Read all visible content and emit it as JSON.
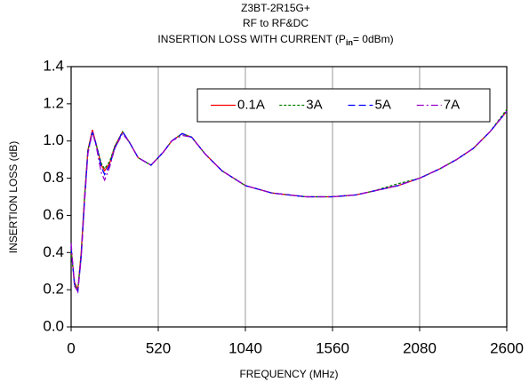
{
  "chart_data": {
    "type": "line",
    "title": [
      "Z3BT-2R15G+",
      "RF to RF&DC"
    ],
    "title_line3": [
      "INSERTION LOSS WITH CURRENT (P",
      "in",
      "= 0dBm)"
    ],
    "x_label": "FREQUENCY (MHz)",
    "y_label": "INSERTION LOSS (dB)",
    "x": [
      0,
      20,
      40,
      60,
      80,
      100,
      127,
      150,
      180,
      200,
      230,
      260,
      307,
      350,
      400,
      477,
      550,
      600,
      663,
      720,
      800,
      900,
      1040,
      1200,
      1400,
      1560,
      1700,
      1800,
      1950,
      2080,
      2200,
      2300,
      2400,
      2500,
      2600
    ],
    "series": [
      {
        "name": "0.1A",
        "color": "#ff0000",
        "dash": "",
        "values": [
          0.42,
          0.24,
          0.2,
          0.4,
          0.7,
          0.95,
          1.06,
          0.98,
          0.87,
          0.84,
          0.88,
          0.97,
          1.05,
          0.99,
          0.91,
          0.87,
          0.94,
          1.0,
          1.04,
          1.02,
          0.93,
          0.84,
          0.76,
          0.72,
          0.7,
          0.7,
          0.71,
          0.73,
          0.76,
          0.8,
          0.85,
          0.9,
          0.96,
          1.05,
          1.16
        ]
      },
      {
        "name": "3A",
        "color": "#008000",
        "dash": "3,2",
        "values": [
          0.41,
          0.23,
          0.2,
          0.39,
          0.69,
          0.95,
          1.05,
          0.98,
          0.88,
          0.85,
          0.89,
          0.97,
          1.05,
          0.99,
          0.91,
          0.87,
          0.94,
          1.0,
          1.04,
          1.02,
          0.93,
          0.84,
          0.76,
          0.72,
          0.7,
          0.7,
          0.71,
          0.73,
          0.77,
          0.8,
          0.85,
          0.9,
          0.96,
          1.05,
          1.17
        ]
      },
      {
        "name": "5A",
        "color": "#0000ff",
        "dash": "8,4",
        "values": [
          0.43,
          0.23,
          0.19,
          0.38,
          0.68,
          0.94,
          1.05,
          0.98,
          0.86,
          0.82,
          0.87,
          0.96,
          1.05,
          0.99,
          0.91,
          0.87,
          0.94,
          1.0,
          1.04,
          1.02,
          0.93,
          0.84,
          0.76,
          0.72,
          0.7,
          0.7,
          0.71,
          0.73,
          0.76,
          0.8,
          0.85,
          0.9,
          0.96,
          1.05,
          1.16
        ]
      },
      {
        "name": "7A",
        "color": "#9900cc",
        "dash": "8,3,2,3",
        "values": [
          0.45,
          0.22,
          0.19,
          0.37,
          0.67,
          0.93,
          1.05,
          0.97,
          0.83,
          0.79,
          0.86,
          0.96,
          1.04,
          0.99,
          0.91,
          0.87,
          0.94,
          1.0,
          1.03,
          1.02,
          0.93,
          0.84,
          0.76,
          0.72,
          0.7,
          0.7,
          0.71,
          0.73,
          0.76,
          0.8,
          0.85,
          0.9,
          0.96,
          1.05,
          1.16
        ]
      }
    ],
    "xlim": [
      0,
      2600
    ],
    "xticks": [
      0,
      520,
      1040,
      1560,
      2080,
      2600
    ],
    "ylim": [
      0,
      1.4
    ],
    "yticks": [
      {
        "value": 0,
        "label": "0.0"
      },
      0.2,
      0.4,
      0.6,
      0.8,
      {
        "value": 1,
        "label": "1.0"
      },
      1.2,
      1.4
    ],
    "grid": "x",
    "legend": "upper right"
  }
}
